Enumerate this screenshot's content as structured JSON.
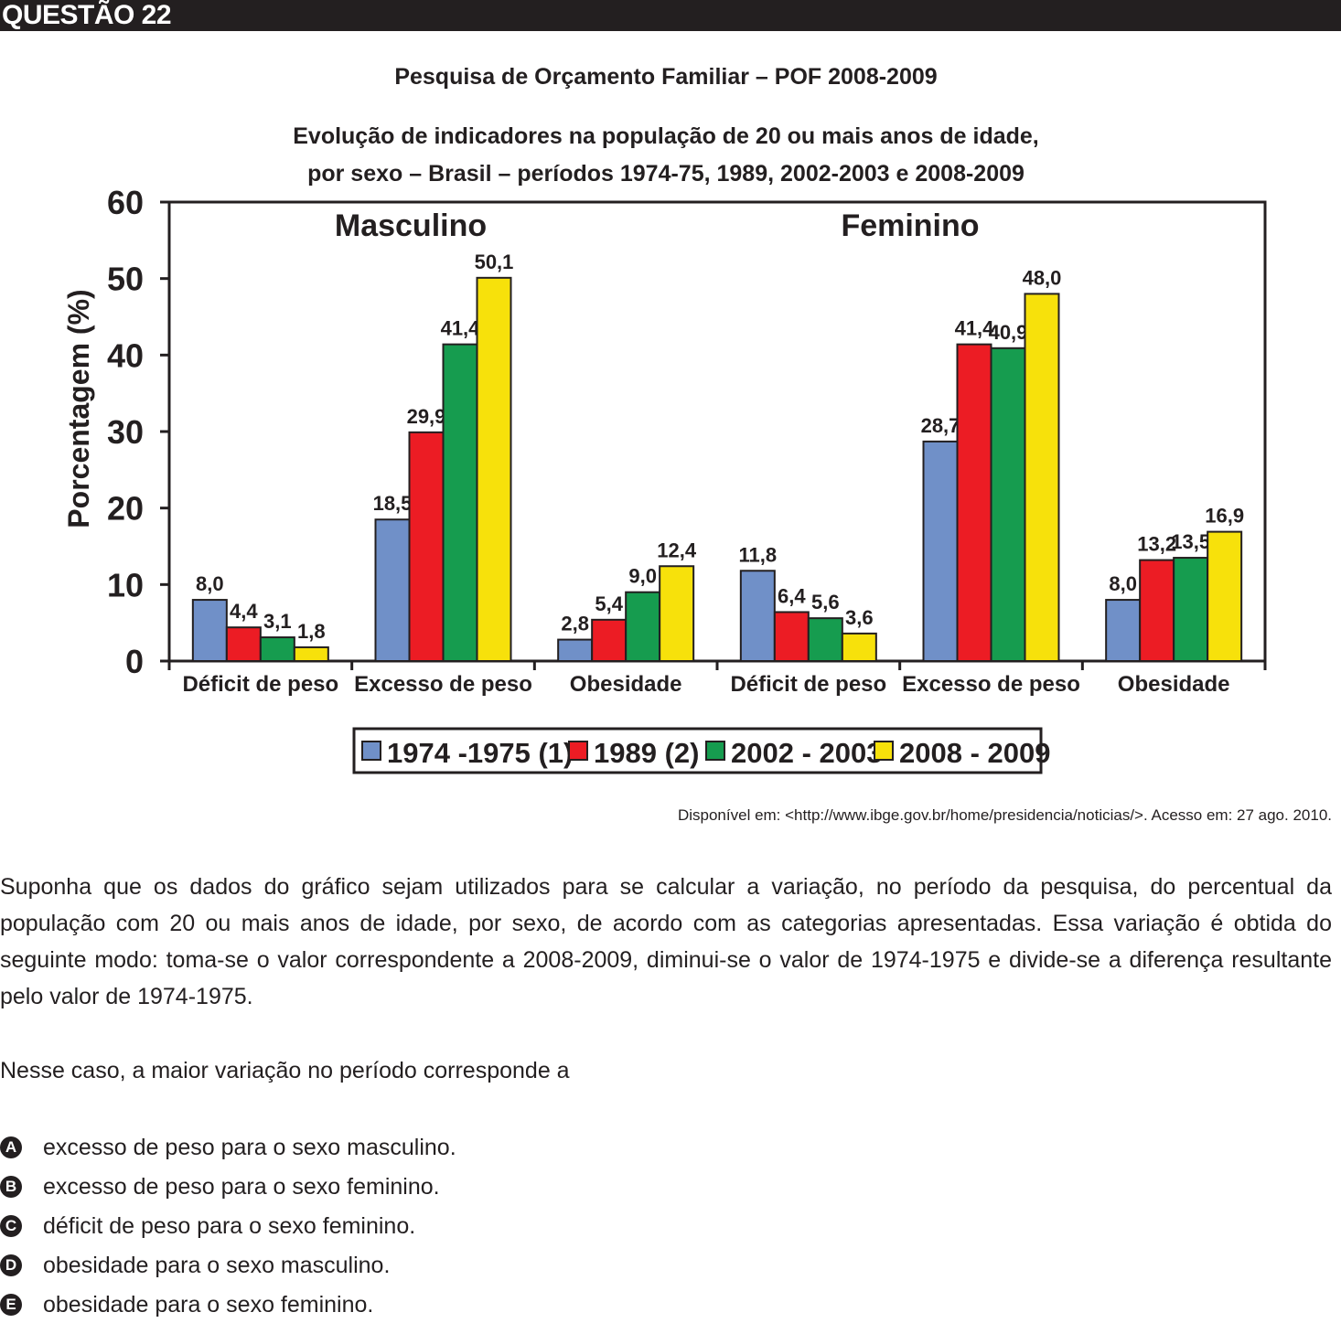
{
  "header": {
    "label": "QUESTÃO 22"
  },
  "chart_titles": {
    "line1": "Pesquisa de Orçamento Familiar – POF 2008-2009",
    "line2": "Evolução de indicadores na população de 20 ou mais anos de idade,",
    "line3": "por sexo – Brasil – períodos 1974-75, 1989, 2002-2003 e 2008-2009"
  },
  "chart_data": {
    "type": "bar",
    "ylabel": "Porcentagem (%)",
    "ylim": [
      0,
      60
    ],
    "yticks": [
      "0",
      "10",
      "20",
      "30",
      "40",
      "50",
      "60"
    ],
    "groups": [
      "Masculino",
      "Feminino"
    ],
    "categories": [
      "Déficit de peso",
      "Excesso de peso",
      "Obesidade",
      "Déficit de peso",
      "Excesso de peso",
      "Obesidade"
    ],
    "series": [
      {
        "name": "1974 -1975 (1)",
        "color": "#7090c8",
        "values": [
          8.0,
          18.5,
          2.8,
          11.8,
          28.7,
          8.0
        ],
        "labels": [
          "8,0",
          "18,5",
          "2,8",
          "11,8",
          "28,7",
          "8,0"
        ]
      },
      {
        "name": "1989 (2)",
        "color": "#ec1c24",
        "values": [
          4.4,
          29.9,
          5.4,
          6.4,
          41.4,
          13.2
        ],
        "labels": [
          "4,4",
          "29,9",
          "5,4",
          "6,4",
          "41,4",
          "13,2"
        ]
      },
      {
        "name": "2002 - 2003",
        "color": "#169c4f",
        "values": [
          3.1,
          41.4,
          9.0,
          5.6,
          40.9,
          13.5
        ],
        "labels": [
          "3,1",
          "41,4",
          "9,0",
          "5,6",
          "40,9",
          "13,5"
        ]
      },
      {
        "name": "2008 - 2009",
        "color": "#f7e10b",
        "values": [
          1.8,
          50.1,
          12.4,
          3.6,
          48.0,
          16.9
        ],
        "labels": [
          "1,8",
          "50,1",
          "12,4",
          "3,6",
          "48,0",
          "16,9"
        ]
      }
    ],
    "legend_position": "bottom",
    "grid": false
  },
  "source": "Disponível em: <http://www.ibge.gov.br/home/presidencia/noticias/>. Acesso em: 27 ago. 2010.",
  "question": {
    "text": "Suponha que os dados do gráfico sejam utilizados para se calcular a variação, no período da pesquisa, do percentual da população com 20 ou mais anos de idade, por sexo, de acordo com as categorias apresentadas. Essa variação é obtida do seguinte modo: toma-se o valor correspondente a 2008-2009, diminui-se o valor de 1974-1975 e divide-se a diferença resultante pelo valor de 1974-1975.",
    "prompt": "Nesse caso, a maior variação no período corresponde a"
  },
  "options": [
    {
      "letter": "A",
      "text": "excesso de peso para o sexo masculino."
    },
    {
      "letter": "B",
      "text": "excesso de peso para o sexo feminino."
    },
    {
      "letter": "C",
      "text": "déficit de peso para o sexo feminino."
    },
    {
      "letter": "D",
      "text": "obesidade para o sexo masculino."
    },
    {
      "letter": "E",
      "text": "obesidade para o sexo feminino."
    }
  ]
}
